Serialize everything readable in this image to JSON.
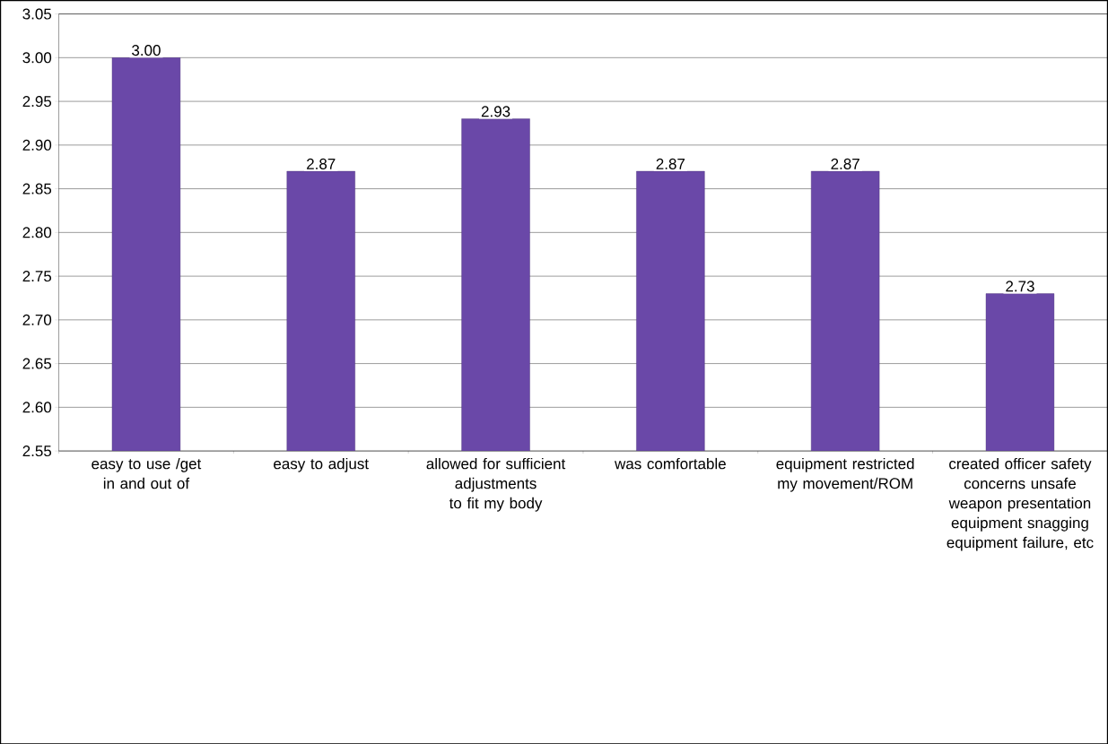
{
  "chart_data": {
    "type": "bar",
    "categories": [
      "easy to use /get in and out of",
      "easy to adjust",
      "allowed for sufficient adjustments to fit my body",
      "was comfortable",
      "equipment restricted my movement/ROM",
      "created officer safety concerns unsafe weapon presentation equipment snagging equipment failure, etc"
    ],
    "values": [
      3.0,
      2.87,
      2.93,
      2.87,
      2.87,
      2.73
    ],
    "value_labels": [
      "3.00",
      "2.87",
      "2.93",
      "2.87",
      "2.87",
      "2.73"
    ],
    "color": "#6a48a8",
    "ylim": [
      2.55,
      3.05
    ],
    "yticks": [
      {
        "value": 2.55,
        "label": "2.55"
      },
      {
        "value": 2.6,
        "label": "2.60"
      },
      {
        "value": 2.65,
        "label": "2.65"
      },
      {
        "value": 2.7,
        "label": "2.70"
      },
      {
        "value": 2.75,
        "label": "2.75"
      },
      {
        "value": 2.8,
        "label": "2.80"
      },
      {
        "value": 2.85,
        "label": "2.85"
      },
      {
        "value": 2.9,
        "label": "2.90"
      },
      {
        "value": 2.95,
        "label": "2.95"
      },
      {
        "value": 3.0,
        "label": "3.00"
      },
      {
        "value": 3.05,
        "label": "3.05"
      }
    ],
    "grid": "y"
  }
}
